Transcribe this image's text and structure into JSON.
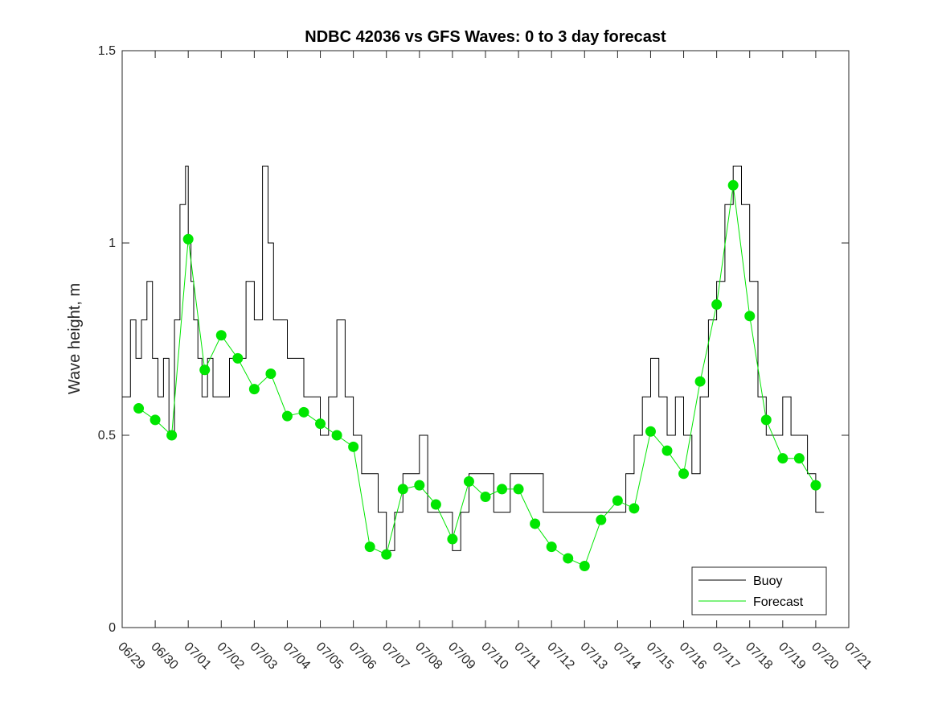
{
  "chart_data": {
    "type": "line",
    "title": "NDBC 42036 vs GFS Waves: 0 to 3 day forecast",
    "xlabel": "",
    "ylabel": "Wave height, m",
    "x_start": "06/29",
    "x_end": "07/21",
    "xticks": [
      "06/29",
      "06/30",
      "07/01",
      "07/02",
      "07/03",
      "07/04",
      "07/05",
      "07/06",
      "07/07",
      "07/08",
      "07/09",
      "07/10",
      "07/11",
      "07/12",
      "07/13",
      "07/14",
      "07/15",
      "07/16",
      "07/17",
      "07/18",
      "07/19",
      "07/20",
      "07/21"
    ],
    "yticks": [
      "0",
      "0.5",
      "1",
      "1.5"
    ],
    "ylim": [
      0,
      1.5
    ],
    "grid": false,
    "legend_position": "bottom-right",
    "colors": {
      "buoy": "#000000",
      "forecast": "#00e600"
    },
    "legend": [
      {
        "label": "Buoy",
        "color": "#000000"
      },
      {
        "label": "Forecast",
        "color": "#00e600"
      }
    ],
    "series": [
      {
        "name": "Buoy",
        "color": "#000000",
        "x": [
          "06/29 00:00",
          "06/29 06:00",
          "06/29 10:00",
          "06/29 14:00",
          "06/29 18:00",
          "06/29 22:00",
          "06/30 02:00",
          "06/30 06:00",
          "06/30 10:00",
          "06/30 14:00",
          "06/30 18:00",
          "06/30 22:00",
          "07/01 00:00",
          "07/01 02:00",
          "07/01 04:00",
          "07/01 07:00",
          "07/01 10:00",
          "07/01 14:00",
          "07/01 18:00",
          "07/02 00:00",
          "07/02 06:00",
          "07/02 12:00",
          "07/02 18:00",
          "07/03 00:00",
          "07/03 06:00",
          "07/03 10:00",
          "07/03 14:00",
          "07/03 18:00",
          "07/04 00:00",
          "07/04 06:00",
          "07/04 12:00",
          "07/04 18:00",
          "07/05 00:00",
          "07/05 06:00",
          "07/05 12:00",
          "07/05 18:00",
          "07/06 00:00",
          "07/06 06:00",
          "07/06 12:00",
          "07/06 18:00",
          "07/07 00:00",
          "07/07 06:00",
          "07/07 12:00",
          "07/07 18:00",
          "07/08 00:00",
          "07/08 06:00",
          "07/08 12:00",
          "07/08 18:00",
          "07/09 00:00",
          "07/09 06:00",
          "07/09 12:00",
          "07/09 18:00",
          "07/10 00:00",
          "07/10 06:00",
          "07/10 12:00",
          "07/10 18:00",
          "07/11 00:00",
          "07/11 06:00",
          "07/11 12:00",
          "07/11 18:00",
          "07/12 00:00",
          "07/12 12:00",
          "07/13 00:00",
          "07/13 12:00",
          "07/14 00:00",
          "07/14 06:00",
          "07/14 12:00",
          "07/14 18:00",
          "07/15 00:00",
          "07/15 06:00",
          "07/15 12:00",
          "07/15 18:00",
          "07/16 00:00",
          "07/16 06:00",
          "07/16 12:00",
          "07/16 18:00",
          "07/17 00:00",
          "07/17 06:00",
          "07/17 12:00",
          "07/17 18:00",
          "07/18 00:00",
          "07/18 06:00",
          "07/18 12:00",
          "07/18 18:00",
          "07/19 00:00",
          "07/19 06:00",
          "07/19 12:00",
          "07/19 18:00",
          "07/20 00:00",
          "07/20 06:00"
        ],
        "y": [
          0.6,
          0.8,
          0.7,
          0.8,
          0.9,
          0.7,
          0.6,
          0.7,
          0.5,
          0.8,
          1.1,
          1.2,
          1.0,
          0.9,
          0.8,
          0.7,
          0.6,
          0.7,
          0.6,
          0.6,
          0.7,
          0.7,
          0.9,
          0.8,
          1.2,
          1.0,
          0.8,
          0.8,
          0.7,
          0.7,
          0.6,
          0.6,
          0.5,
          0.6,
          0.8,
          0.6,
          0.5,
          0.4,
          0.4,
          0.3,
          0.2,
          0.3,
          0.4,
          0.4,
          0.5,
          0.3,
          0.3,
          0.3,
          0.2,
          0.3,
          0.4,
          0.4,
          0.4,
          0.3,
          0.3,
          0.4,
          0.4,
          0.4,
          0.4,
          0.3,
          0.3,
          0.3,
          0.3,
          0.3,
          0.3,
          0.4,
          0.5,
          0.6,
          0.7,
          0.6,
          0.5,
          0.6,
          0.5,
          0.4,
          0.6,
          0.8,
          0.9,
          1.1,
          1.2,
          1.1,
          0.9,
          0.6,
          0.5,
          0.5,
          0.6,
          0.5,
          0.5,
          0.4,
          0.3,
          0.3
        ]
      },
      {
        "name": "Forecast",
        "color": "#00e600",
        "x": [
          "06/29 12:00",
          "06/30 00:00",
          "06/30 12:00",
          "07/01 00:00",
          "07/01 12:00",
          "07/02 00:00",
          "07/02 12:00",
          "07/03 00:00",
          "07/03 12:00",
          "07/04 00:00",
          "07/04 12:00",
          "07/05 00:00",
          "07/05 12:00",
          "07/06 00:00",
          "07/06 12:00",
          "07/07 00:00",
          "07/07 12:00",
          "07/08 00:00",
          "07/08 12:00",
          "07/09 00:00",
          "07/09 12:00",
          "07/10 00:00",
          "07/10 12:00",
          "07/11 00:00",
          "07/11 12:00",
          "07/12 00:00",
          "07/12 12:00",
          "07/13 00:00",
          "07/13 12:00",
          "07/14 00:00",
          "07/14 12:00",
          "07/15 00:00",
          "07/15 12:00",
          "07/16 00:00",
          "07/16 12:00",
          "07/17 00:00",
          "07/17 12:00",
          "07/18 00:00",
          "07/18 12:00",
          "07/19 00:00",
          "07/19 12:00",
          "07/20 00:00"
        ],
        "y": [
          0.57,
          0.54,
          0.5,
          1.01,
          0.67,
          0.76,
          0.7,
          0.62,
          0.66,
          0.55,
          0.56,
          0.53,
          0.5,
          0.47,
          0.21,
          0.19,
          0.36,
          0.37,
          0.32,
          0.23,
          0.38,
          0.34,
          0.36,
          0.36,
          0.27,
          0.21,
          0.18,
          0.16,
          0.28,
          0.33,
          0.31,
          0.51,
          0.46,
          0.4,
          0.64,
          0.84,
          1.15,
          0.81,
          0.54,
          0.44,
          0.44,
          0.37
        ]
      }
    ]
  }
}
